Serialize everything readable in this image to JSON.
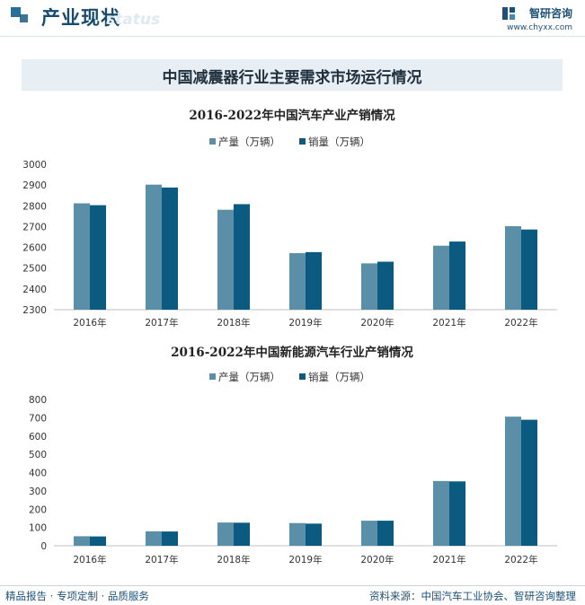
{
  "header": {
    "section_title": "产业现状",
    "ghost_text": "status",
    "brand_name": "智研咨询",
    "brand_url": "www.chyxx.com"
  },
  "banner": {
    "title": "中国减震器行业主要需求市场运行情况"
  },
  "colors": {
    "production": "#5b8fa8",
    "sales": "#0b5a80"
  },
  "chart_data": [
    {
      "type": "bar",
      "title": "2016-2022年中国汽车产业产销情况",
      "categories": [
        "2016年",
        "2017年",
        "2018年",
        "2019年",
        "2020年",
        "2021年",
        "2022年"
      ],
      "series": [
        {
          "name": "产量（万辆）",
          "values": [
            2812,
            2902,
            2781,
            2572,
            2523,
            2608,
            2702
          ]
        },
        {
          "name": "销量（万辆）",
          "values": [
            2803,
            2888,
            2808,
            2577,
            2531,
            2628,
            2686
          ]
        }
      ],
      "ylim": [
        2300,
        3000
      ],
      "yticks": [
        2300,
        2400,
        2500,
        2600,
        2700,
        2800,
        2900,
        3000
      ],
      "legend_position": "top-center",
      "grid": false
    },
    {
      "type": "bar",
      "title": "2016-2022年中国新能源汽车行业产销情况",
      "categories": [
        "2016年",
        "2017年",
        "2018年",
        "2019年",
        "2020年",
        "2021年",
        "2022年"
      ],
      "series": [
        {
          "name": "产量（万辆）",
          "values": [
            52,
            79,
            127,
            124,
            137,
            354,
            706
          ]
        },
        {
          "name": "销量（万辆）",
          "values": [
            51,
            78,
            126,
            121,
            137,
            352,
            689
          ]
        }
      ],
      "ylim": [
        0,
        800
      ],
      "yticks": [
        0,
        100,
        200,
        300,
        400,
        500,
        600,
        700,
        800
      ],
      "legend_position": "top-center",
      "grid": false
    }
  ],
  "footer": {
    "left": "精品报告 · 专项定制 · 品质服务",
    "right": "资料来源：中国汽车工业协会、智研咨询整理"
  }
}
